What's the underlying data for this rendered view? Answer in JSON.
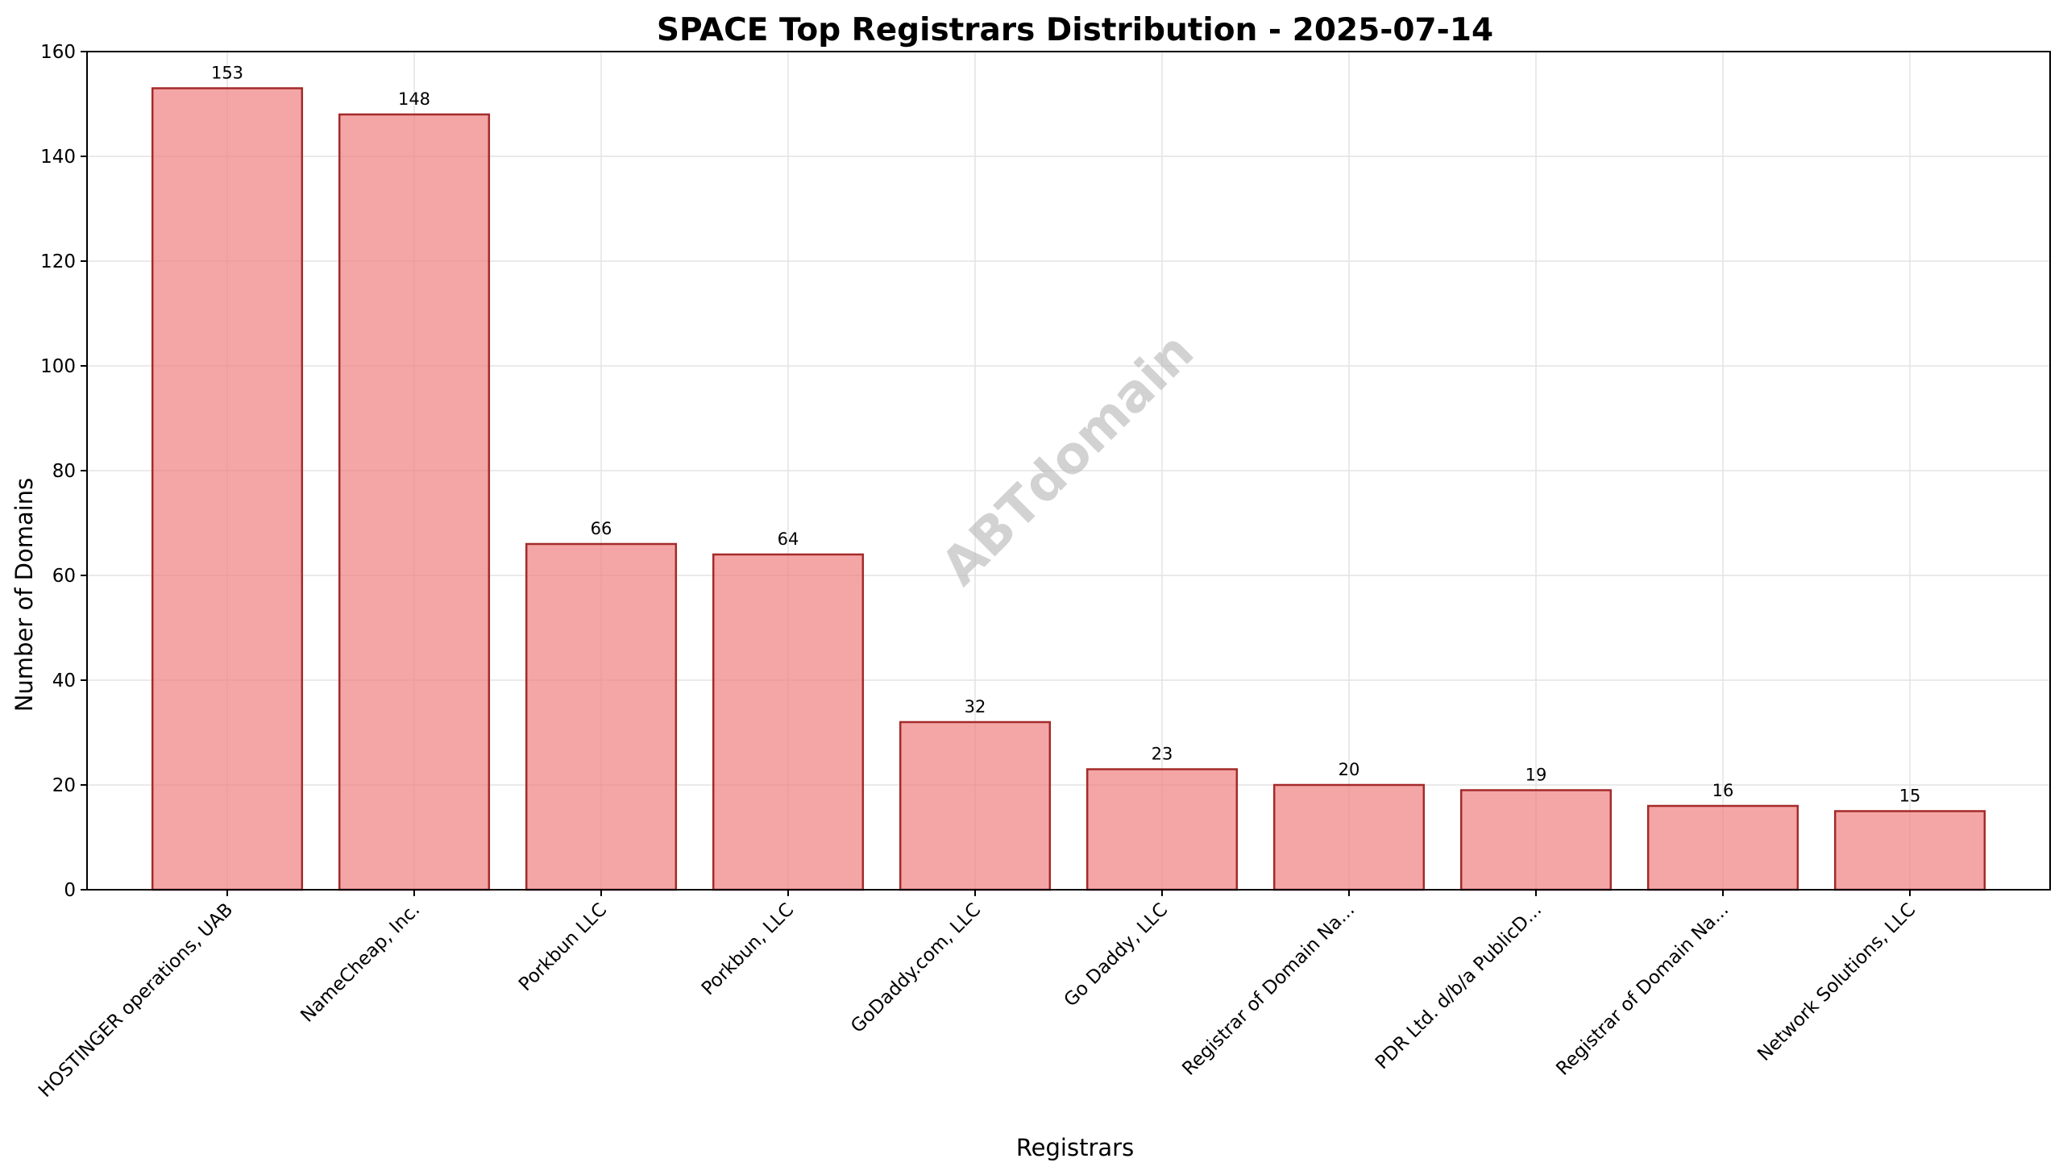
{
  "chart_data": {
    "type": "bar",
    "title": "SPACE Top Registrars Distribution - 2025-07-14",
    "xlabel": "Registrars",
    "ylabel": "Number of Domains",
    "categories": [
      "HOSTINGER operations, UAB",
      "NameCheap, Inc.",
      "Porkbun LLC",
      "Porkbun, LLC",
      "GoDaddy.com, LLC",
      "Go Daddy, LLC",
      "Registrar of Domain Na...",
      "PDR Ltd. d/b/a PublicD...",
      "Registrar of Domain Na...",
      "Network Solutions, LLC"
    ],
    "values": [
      153,
      148,
      66,
      64,
      32,
      23,
      20,
      19,
      16,
      15
    ],
    "ylim": [
      0,
      160
    ],
    "yticks": [
      0,
      20,
      40,
      60,
      80,
      100,
      120,
      140,
      160
    ],
    "grid": true,
    "watermark": "ABTdomain",
    "colors": {
      "bar_fill": "#f08080",
      "bar_edge": "#a52a2a"
    }
  }
}
